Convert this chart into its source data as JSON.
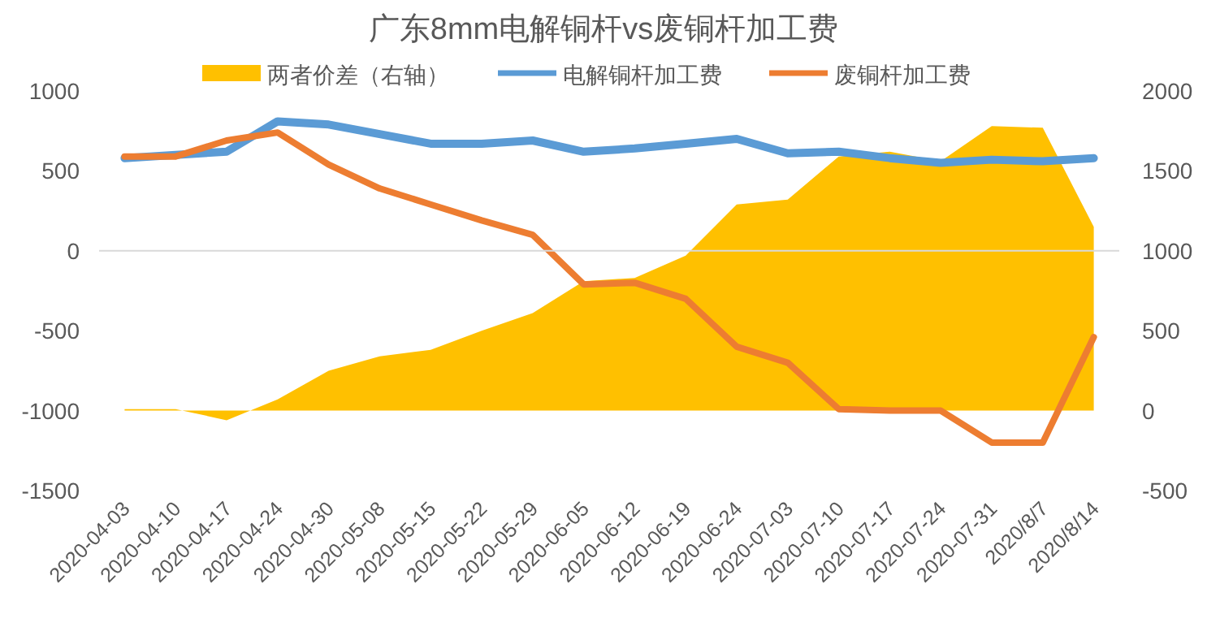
{
  "chart_data": {
    "type": "line",
    "title": "广东8mm电解铜杆vs废铜杆加工费",
    "categories": [
      "2020-04-03",
      "2020-04-10",
      "2020-04-17",
      "2020-04-24",
      "2020-04-30",
      "2020-05-08",
      "2020-05-15",
      "2020-05-22",
      "2020-05-29",
      "2020-06-05",
      "2020-06-12",
      "2020-06-19",
      "2020-06-24",
      "2020-07-03",
      "2020-07-10",
      "2020-07-17",
      "2020-07-24",
      "2020-07-31",
      "2020/8/7",
      "2020/8/14"
    ],
    "series": [
      {
        "name": "两者价差（右轴）",
        "type": "area",
        "axis": "y2",
        "color": "#ffc000",
        "values": [
          10,
          10,
          -60,
          70,
          250,
          340,
          380,
          500,
          610,
          810,
          830,
          970,
          1290,
          1320,
          1590,
          1620,
          1560,
          1780,
          1770,
          1150
        ]
      },
      {
        "name": "电解铜杆加工费",
        "type": "line",
        "color": "#5b9bd5",
        "values": [
          580,
          600,
          620,
          810,
          790,
          730,
          670,
          670,
          690,
          620,
          640,
          670,
          700,
          610,
          620,
          580,
          550,
          570,
          560,
          580
        ]
      },
      {
        "name": "废铜杆加工费",
        "type": "line",
        "color": "#ed7d31",
        "values": [
          590,
          590,
          690,
          740,
          540,
          390,
          290,
          190,
          100,
          -210,
          -200,
          -300,
          -600,
          -700,
          -990,
          -1000,
          -1000,
          -1200,
          -1200,
          -540
        ]
      }
    ],
    "ylim": [
      -1500,
      1000
    ],
    "yticks": [
      -1500,
      -1000,
      -500,
      0,
      500,
      1000
    ],
    "y2lim": [
      -500,
      2000
    ],
    "y2ticks": [
      -500,
      0,
      500,
      1000,
      1500,
      2000
    ],
    "ref_lines": [
      {
        "axis": "y",
        "value": 0,
        "color": "#d9d9d9"
      }
    ],
    "legend": "top",
    "grid": false
  }
}
